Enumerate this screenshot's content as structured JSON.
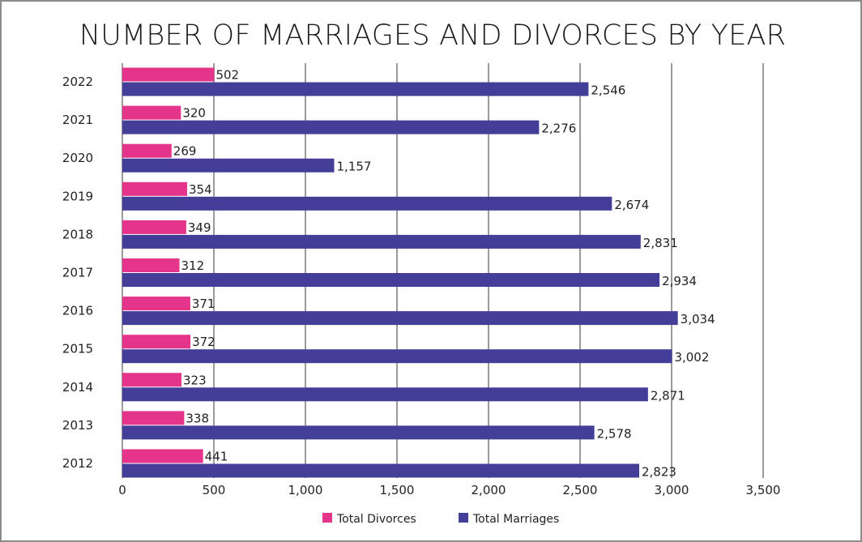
{
  "chart_data": {
    "type": "bar",
    "orientation": "horizontal",
    "title": "NUMBER OF MARRIAGES AND DIVORCES BY YEAR",
    "xlabel": "",
    "ylabel": "",
    "xlim": [
      0,
      3500
    ],
    "x_ticks": [
      0,
      500,
      1000,
      1500,
      2000,
      2500,
      3000,
      3500
    ],
    "x_tick_labels": [
      "0",
      "500",
      "1,000",
      "1,500",
      "2,000",
      "2,500",
      "3,000",
      "3,500"
    ],
    "grid": true,
    "legend_position": "bottom",
    "categories": [
      "2022",
      "2021",
      "2020",
      "2019",
      "2018",
      "2017",
      "2016",
      "2015",
      "2014",
      "2013",
      "2012"
    ],
    "series": [
      {
        "name": "Total Divorces",
        "color": "#e5358a",
        "values": [
          502,
          320,
          269,
          354,
          349,
          312,
          371,
          372,
          323,
          338,
          441
        ],
        "labels": [
          "502",
          "320",
          "269",
          "354",
          "349",
          "312",
          "371",
          "372",
          "323",
          "338",
          "441"
        ]
      },
      {
        "name": "Total Marriages",
        "color": "#433e98",
        "values": [
          2546,
          2276,
          1157,
          2674,
          2831,
          2934,
          3034,
          3002,
          2871,
          2578,
          2823
        ],
        "labels": [
          "2,546",
          "2,276",
          "1,157",
          "2,674",
          "2,831",
          "2,934",
          "3,034",
          "3,002",
          "2,871",
          "2,578",
          "2,823"
        ]
      }
    ]
  }
}
